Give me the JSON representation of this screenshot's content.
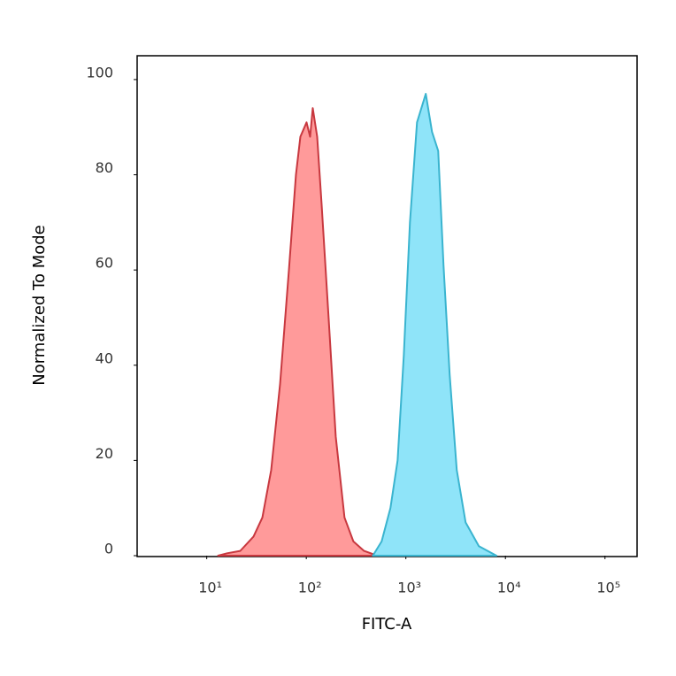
{
  "chart_data": {
    "type": "area",
    "xlabel": "FITC-A",
    "ylabel": "Normalized To Mode",
    "xscale": "log",
    "xlim": [
      2,
      210000
    ],
    "ylim": [
      0,
      105
    ],
    "xticks": [
      {
        "value": 10,
        "label": "10¹"
      },
      {
        "value": 100,
        "label": "10²"
      },
      {
        "value": 1000,
        "label": "10³"
      },
      {
        "value": 10000,
        "label": "10⁴"
      },
      {
        "value": 100000,
        "label": "10⁵"
      }
    ],
    "yticks": [
      0,
      20,
      40,
      60,
      80,
      100
    ],
    "grid": false,
    "series": [
      {
        "color": "#c8383f",
        "fill": "#ff9a9a",
        "x": [
          13.0,
          16.0,
          21.7,
          29.5,
          36.2,
          44.4,
          54.5,
          66.9,
          78.7,
          87.2,
          100.6,
          109.2,
          116.1,
          128.6,
          142.3,
          167.5,
          197.6,
          242,
          297,
          380,
          516
        ],
        "values": [
          0,
          0.5,
          1,
          4,
          8,
          18,
          36,
          60,
          80,
          88,
          91,
          88,
          94,
          88,
          74,
          50,
          25,
          8,
          3,
          1,
          0
        ]
      },
      {
        "color": "#3ab4cf",
        "fill": "#8fe4f9",
        "x": [
          466,
          571,
          700,
          826,
          953,
          1099,
          1294,
          1585,
          1832,
          2113,
          2389,
          2755,
          3244,
          3981,
          5408,
          8128
        ],
        "values": [
          0,
          3,
          10,
          20,
          42,
          70,
          91,
          97,
          89,
          85,
          61,
          38,
          18,
          7,
          2,
          0
        ]
      }
    ]
  }
}
